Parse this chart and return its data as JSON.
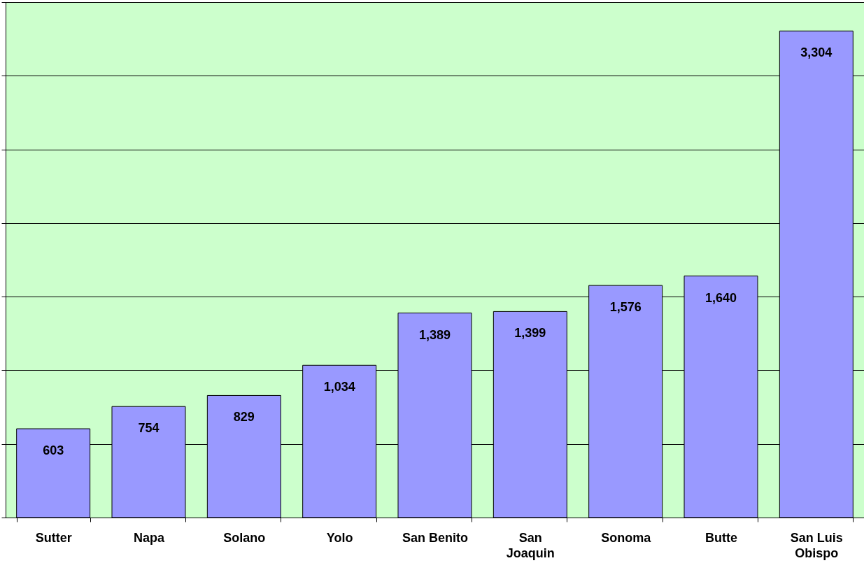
{
  "chart_data": {
    "type": "bar",
    "categories": [
      "Sutter",
      "Napa",
      "Solano",
      "Yolo",
      "San Benito",
      "San Joaquin",
      "Sonoma",
      "Butte",
      "San Luis Obispo"
    ],
    "values": [
      603,
      754,
      829,
      1034,
      1389,
      1399,
      1576,
      1640,
      3304
    ],
    "value_labels": [
      "603",
      "754",
      "829",
      "1,034",
      "1,389",
      "1,399",
      "1,576",
      "1,640",
      "3,304"
    ],
    "color": "#9999ff",
    "ylim": [
      0,
      3500
    ],
    "yticks": [
      {
        "value": 0,
        "label": null
      },
      {
        "value": 500,
        "label": null
      },
      {
        "value": 1000,
        "label": null
      },
      {
        "value": 1500,
        "label": null
      },
      {
        "value": 2000,
        "label": null
      },
      {
        "value": 2500,
        "label": null
      },
      {
        "value": 3000,
        "label": null
      },
      {
        "value": 3500,
        "label": null
      }
    ],
    "tick_labels": "x",
    "grid": "y"
  }
}
